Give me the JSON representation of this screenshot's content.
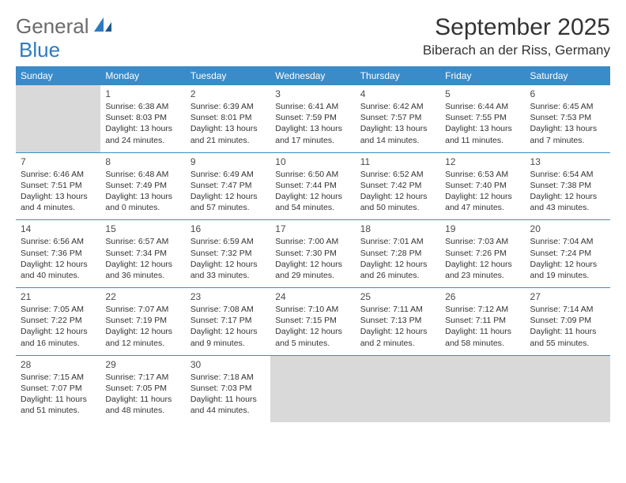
{
  "logo": {
    "text_gray": "General",
    "text_blue": "Blue",
    "icon_color": "#2d7bc0"
  },
  "title": "September 2025",
  "location": "Biberach an der Riss, Germany",
  "colors": {
    "header_bg": "#3b8bc8",
    "inactive_bg": "#d9d9d9",
    "border": "#3b8bc8"
  },
  "weekdays": [
    "Sunday",
    "Monday",
    "Tuesday",
    "Wednesday",
    "Thursday",
    "Friday",
    "Saturday"
  ],
  "weeks": [
    [
      {
        "blank": true
      },
      {
        "num": "1",
        "sunrise": "6:38 AM",
        "sunset": "8:03 PM",
        "daylight": "13 hours and 24 minutes."
      },
      {
        "num": "2",
        "sunrise": "6:39 AM",
        "sunset": "8:01 PM",
        "daylight": "13 hours and 21 minutes."
      },
      {
        "num": "3",
        "sunrise": "6:41 AM",
        "sunset": "7:59 PM",
        "daylight": "13 hours and 17 minutes."
      },
      {
        "num": "4",
        "sunrise": "6:42 AM",
        "sunset": "7:57 PM",
        "daylight": "13 hours and 14 minutes."
      },
      {
        "num": "5",
        "sunrise": "6:44 AM",
        "sunset": "7:55 PM",
        "daylight": "13 hours and 11 minutes."
      },
      {
        "num": "6",
        "sunrise": "6:45 AM",
        "sunset": "7:53 PM",
        "daylight": "13 hours and 7 minutes."
      }
    ],
    [
      {
        "num": "7",
        "sunrise": "6:46 AM",
        "sunset": "7:51 PM",
        "daylight": "13 hours and 4 minutes."
      },
      {
        "num": "8",
        "sunrise": "6:48 AM",
        "sunset": "7:49 PM",
        "daylight": "13 hours and 0 minutes."
      },
      {
        "num": "9",
        "sunrise": "6:49 AM",
        "sunset": "7:47 PM",
        "daylight": "12 hours and 57 minutes."
      },
      {
        "num": "10",
        "sunrise": "6:50 AM",
        "sunset": "7:44 PM",
        "daylight": "12 hours and 54 minutes."
      },
      {
        "num": "11",
        "sunrise": "6:52 AM",
        "sunset": "7:42 PM",
        "daylight": "12 hours and 50 minutes."
      },
      {
        "num": "12",
        "sunrise": "6:53 AM",
        "sunset": "7:40 PM",
        "daylight": "12 hours and 47 minutes."
      },
      {
        "num": "13",
        "sunrise": "6:54 AM",
        "sunset": "7:38 PM",
        "daylight": "12 hours and 43 minutes."
      }
    ],
    [
      {
        "num": "14",
        "sunrise": "6:56 AM",
        "sunset": "7:36 PM",
        "daylight": "12 hours and 40 minutes."
      },
      {
        "num": "15",
        "sunrise": "6:57 AM",
        "sunset": "7:34 PM",
        "daylight": "12 hours and 36 minutes."
      },
      {
        "num": "16",
        "sunrise": "6:59 AM",
        "sunset": "7:32 PM",
        "daylight": "12 hours and 33 minutes."
      },
      {
        "num": "17",
        "sunrise": "7:00 AM",
        "sunset": "7:30 PM",
        "daylight": "12 hours and 29 minutes."
      },
      {
        "num": "18",
        "sunrise": "7:01 AM",
        "sunset": "7:28 PM",
        "daylight": "12 hours and 26 minutes."
      },
      {
        "num": "19",
        "sunrise": "7:03 AM",
        "sunset": "7:26 PM",
        "daylight": "12 hours and 23 minutes."
      },
      {
        "num": "20",
        "sunrise": "7:04 AM",
        "sunset": "7:24 PM",
        "daylight": "12 hours and 19 minutes."
      }
    ],
    [
      {
        "num": "21",
        "sunrise": "7:05 AM",
        "sunset": "7:22 PM",
        "daylight": "12 hours and 16 minutes."
      },
      {
        "num": "22",
        "sunrise": "7:07 AM",
        "sunset": "7:19 PM",
        "daylight": "12 hours and 12 minutes."
      },
      {
        "num": "23",
        "sunrise": "7:08 AM",
        "sunset": "7:17 PM",
        "daylight": "12 hours and 9 minutes."
      },
      {
        "num": "24",
        "sunrise": "7:10 AM",
        "sunset": "7:15 PM",
        "daylight": "12 hours and 5 minutes."
      },
      {
        "num": "25",
        "sunrise": "7:11 AM",
        "sunset": "7:13 PM",
        "daylight": "12 hours and 2 minutes."
      },
      {
        "num": "26",
        "sunrise": "7:12 AM",
        "sunset": "7:11 PM",
        "daylight": "11 hours and 58 minutes."
      },
      {
        "num": "27",
        "sunrise": "7:14 AM",
        "sunset": "7:09 PM",
        "daylight": "11 hours and 55 minutes."
      }
    ],
    [
      {
        "num": "28",
        "sunrise": "7:15 AM",
        "sunset": "7:07 PM",
        "daylight": "11 hours and 51 minutes."
      },
      {
        "num": "29",
        "sunrise": "7:17 AM",
        "sunset": "7:05 PM",
        "daylight": "11 hours and 48 minutes."
      },
      {
        "num": "30",
        "sunrise": "7:18 AM",
        "sunset": "7:03 PM",
        "daylight": "11 hours and 44 minutes."
      },
      {
        "blank": true
      },
      {
        "blank": true
      },
      {
        "blank": true
      },
      {
        "blank": true
      }
    ]
  ],
  "labels": {
    "sunrise": "Sunrise:",
    "sunset": "Sunset:",
    "daylight": "Daylight:"
  }
}
